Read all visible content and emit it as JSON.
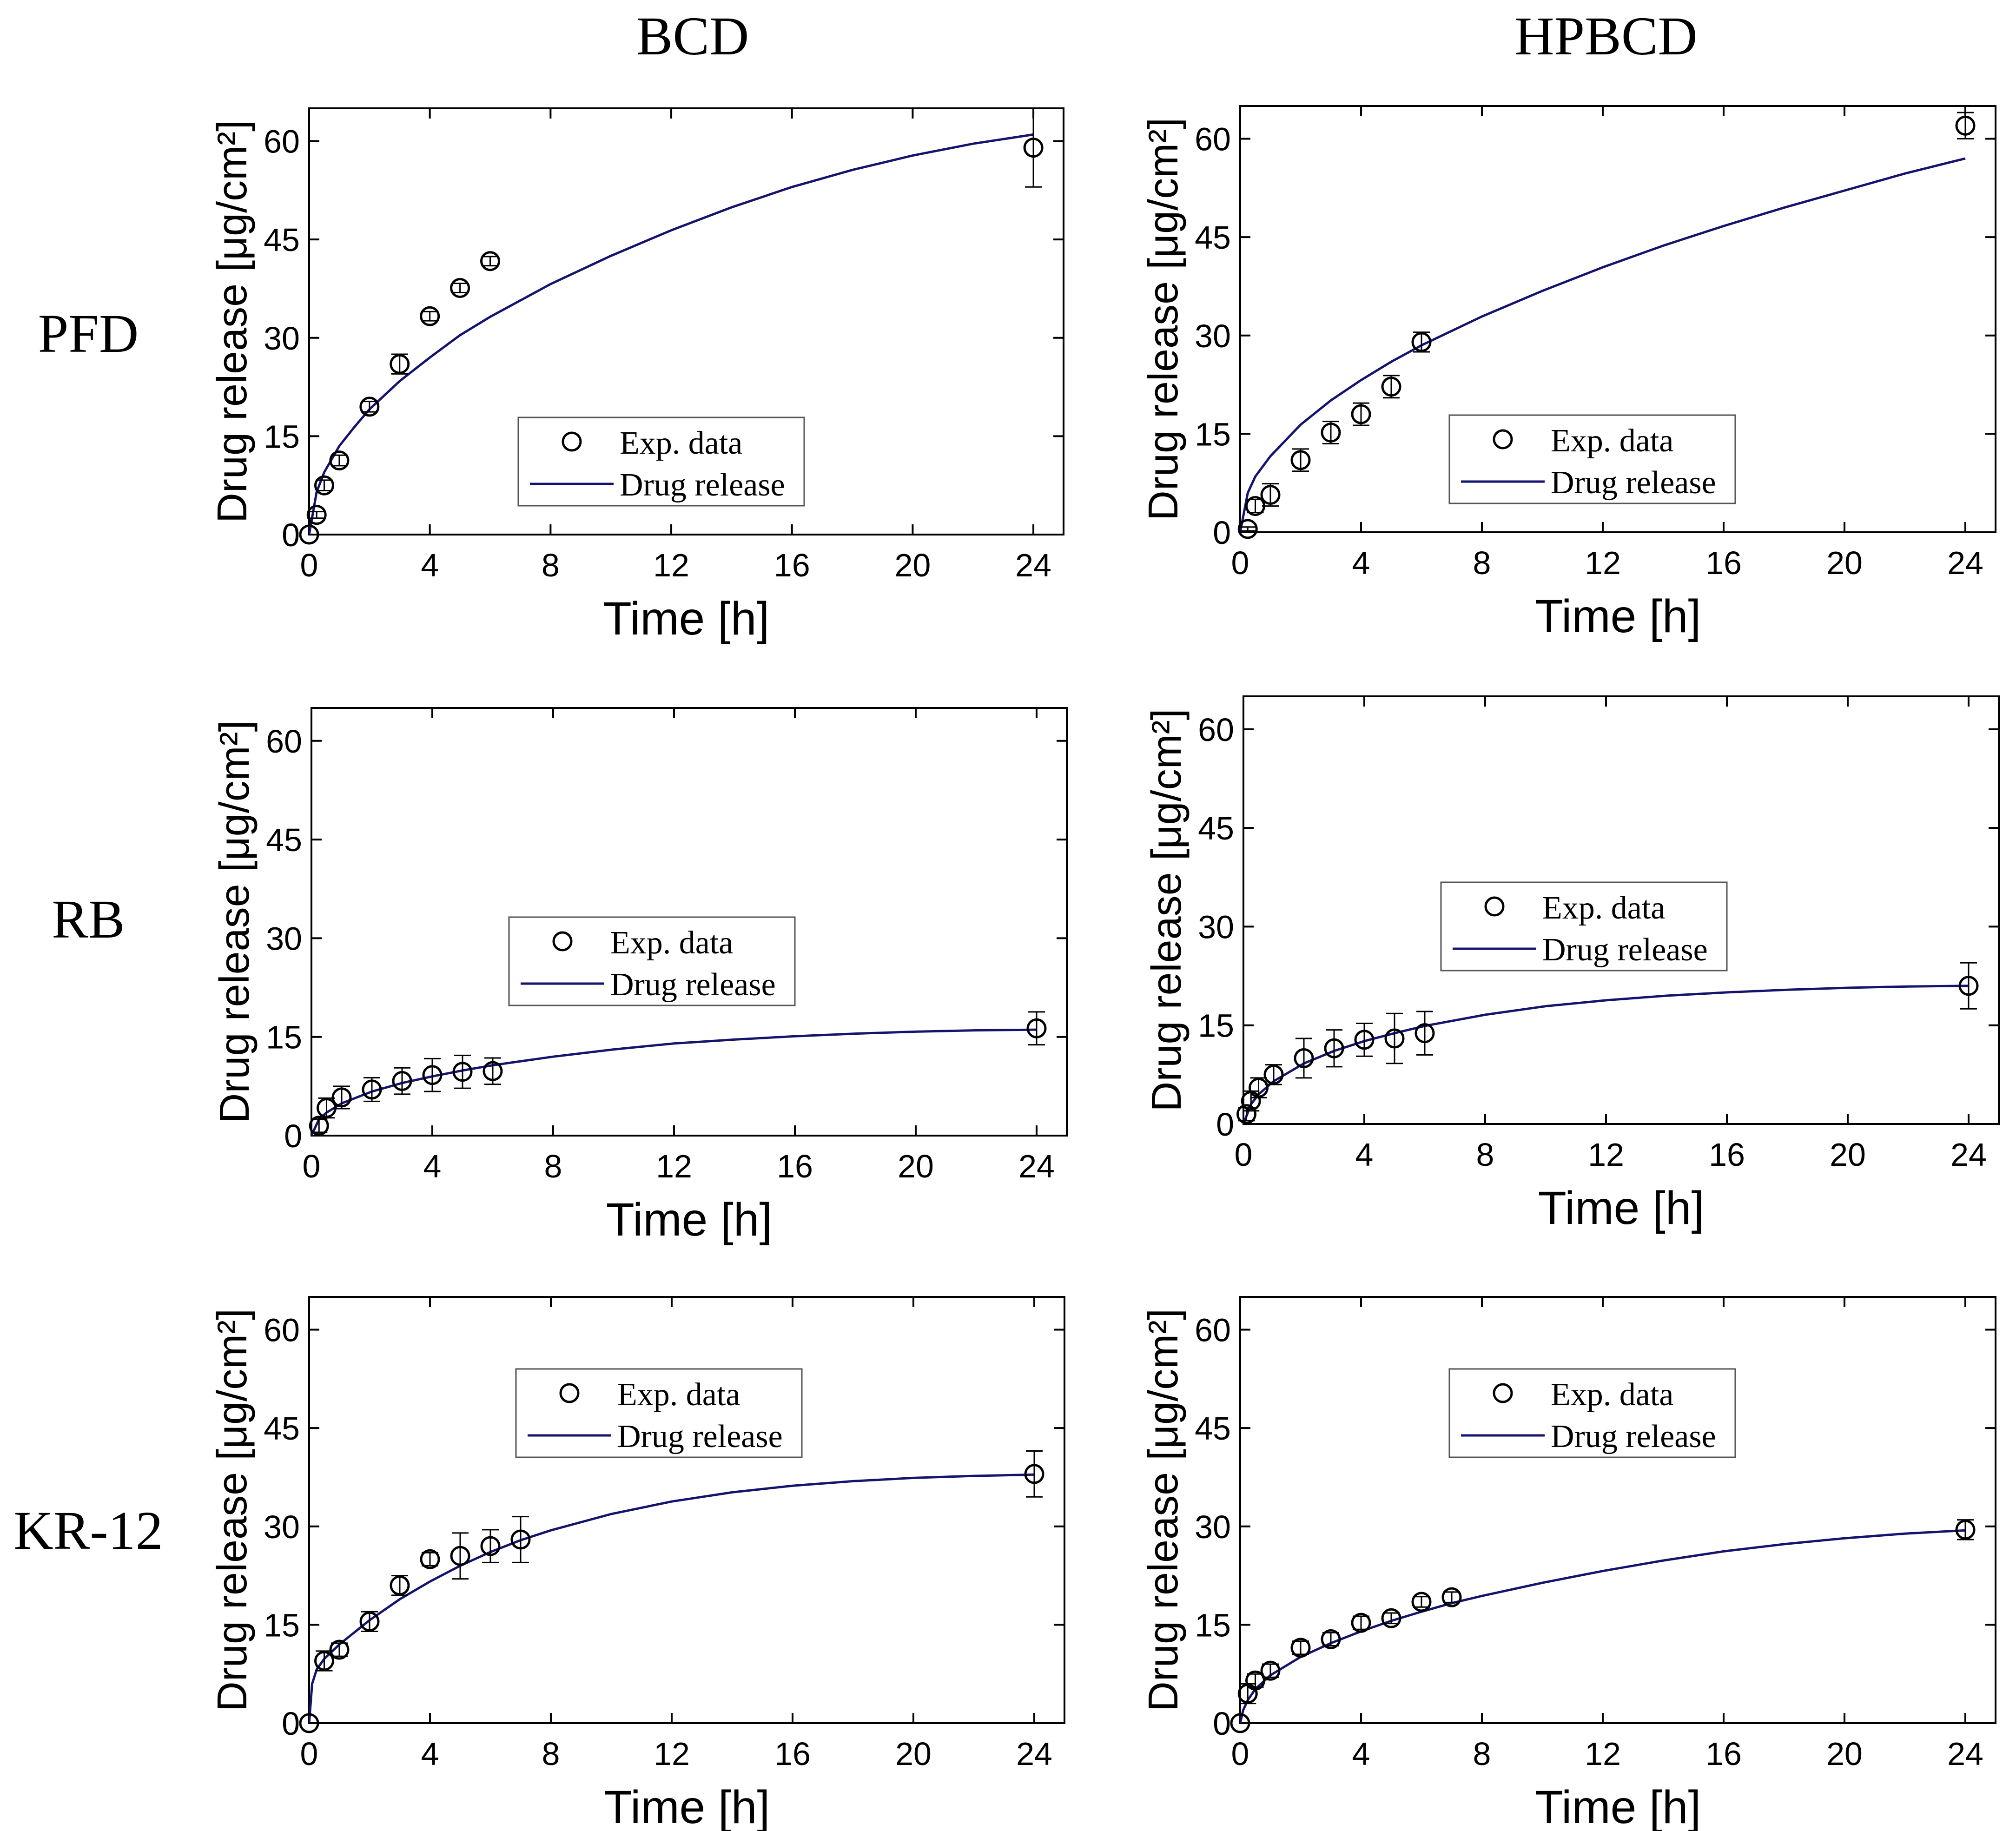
{
  "columns": [
    "BCD",
    "HPBCD"
  ],
  "rows": [
    "PFD",
    "RB",
    "KR-12"
  ],
  "style": {
    "curve_color": "#14146e",
    "marker_color": "#000000",
    "axis_color": "#000000"
  },
  "chart_data": [
    {
      "id": "pfd-bcd",
      "row": "PFD",
      "column": "BCD",
      "type": "scatter",
      "xlabel": "Time [h]",
      "ylabel": "Drug release [μg/cm²]",
      "xlim": [
        0,
        25
      ],
      "ylim": [
        0,
        65
      ],
      "xticks": [
        0,
        4,
        8,
        12,
        16,
        20,
        24
      ],
      "yticks": [
        0,
        15,
        30,
        45,
        60
      ],
      "legend": {
        "position": "center-right",
        "marker_label": "Exp. data",
        "line_label": "Drug release"
      },
      "series": [
        {
          "name": "Exp. data",
          "kind": "points",
          "x": [
            0,
            0.25,
            0.5,
            1,
            2,
            3,
            4,
            5,
            6,
            24
          ],
          "y": [
            0,
            3,
            7.5,
            11.3,
            19.5,
            26,
            33.3,
            37.6,
            41.7,
            59
          ],
          "err": [
            0,
            0.5,
            0.8,
            0.8,
            0.8,
            1.5,
            0.7,
            0.7,
            0.7,
            6
          ]
        },
        {
          "name": "Drug release",
          "kind": "line",
          "x": [
            0,
            0.25,
            0.5,
            1,
            1.5,
            2,
            3,
            4,
            5,
            6,
            8,
            10,
            12,
            14,
            16,
            18,
            20,
            22,
            24
          ],
          "y": [
            0,
            6.5,
            9.5,
            13.5,
            16.4,
            19.1,
            23.4,
            27,
            30.4,
            33.2,
            38.2,
            42.5,
            46.4,
            49.9,
            53.0,
            55.6,
            57.8,
            59.6,
            61
          ]
        }
      ]
    },
    {
      "id": "pfd-hpbcd",
      "row": "PFD",
      "column": "HPBCD",
      "type": "scatter",
      "xlabel": "Time [h]",
      "ylabel": "Drug release [μg/cm²]",
      "xlim": [
        0,
        25
      ],
      "ylim": [
        0,
        65
      ],
      "xticks": [
        0,
        4,
        8,
        12,
        16,
        20,
        24
      ],
      "yticks": [
        0,
        15,
        30,
        45,
        60
      ],
      "legend": {
        "position": "center-right",
        "marker_label": "Exp. data",
        "line_label": "Drug release"
      },
      "series": [
        {
          "name": "Exp. data",
          "kind": "points",
          "x": [
            0.25,
            0.5,
            1,
            2,
            3,
            4,
            5,
            6,
            24
          ],
          "y": [
            0.5,
            4,
            5.7,
            11,
            15.2,
            18,
            22.2,
            29,
            62
          ],
          "err": [
            0.3,
            1.0,
            1.7,
            1.7,
            1.7,
            1.7,
            1.7,
            1.5,
            2
          ]
        },
        {
          "name": "Drug release",
          "kind": "line",
          "x": [
            0,
            0.25,
            0.5,
            1,
            2,
            3,
            4,
            5,
            6,
            8,
            10,
            12,
            14,
            16,
            18,
            20,
            22,
            24
          ],
          "y": [
            0,
            6,
            8.5,
            11.6,
            16.4,
            20.1,
            23.2,
            26.0,
            28.5,
            32.9,
            36.8,
            40.4,
            43.7,
            46.7,
            49.5,
            52.1,
            54.7,
            57
          ]
        }
      ]
    },
    {
      "id": "rb-bcd",
      "row": "RB",
      "column": "BCD",
      "type": "scatter",
      "xlabel": "Time [h]",
      "ylabel": "Drug release [μg/cm²]",
      "xlim": [
        0,
        25
      ],
      "ylim": [
        0,
        65
      ],
      "xticks": [
        0,
        4,
        8,
        12,
        16,
        20,
        24
      ],
      "yticks": [
        0,
        15,
        30,
        45,
        60
      ],
      "legend": {
        "position": "center",
        "marker_label": "Exp. data",
        "line_label": "Drug release"
      },
      "series": [
        {
          "name": "Exp. data",
          "kind": "points",
          "x": [
            0.25,
            0.5,
            1,
            2,
            3,
            4,
            5,
            6,
            24
          ],
          "y": [
            1.5,
            4.2,
            5.8,
            7.0,
            8.3,
            9.2,
            9.7,
            9.8,
            16.3
          ],
          "err": [
            1,
            1.5,
            1.7,
            1.8,
            2.0,
            2.5,
            2.5,
            2.0,
            2.5
          ]
        },
        {
          "name": "Drug release",
          "kind": "line",
          "x": [
            0,
            0.25,
            0.5,
            1,
            2,
            3,
            4,
            5,
            6,
            8,
            10,
            12,
            14,
            16,
            18,
            20,
            22,
            24
          ],
          "y": [
            0,
            2.5,
            3.5,
            4.9,
            6.7,
            8.0,
            9.0,
            9.9,
            10.7,
            12.0,
            13.1,
            14.0,
            14.6,
            15.1,
            15.5,
            15.8,
            16.0,
            16.1
          ]
        }
      ]
    },
    {
      "id": "rb-hpbcd",
      "row": "RB",
      "column": "HPBCD",
      "type": "scatter",
      "xlabel": "Time [h]",
      "ylabel": "Drug release [μg/cm²]",
      "xlim": [
        0,
        25
      ],
      "ylim": [
        0,
        65
      ],
      "xticks": [
        0,
        4,
        8,
        12,
        16,
        20,
        24
      ],
      "yticks": [
        0,
        15,
        30,
        45,
        60
      ],
      "legend": {
        "position": "top-center",
        "marker_label": "Exp. data",
        "line_label": "Drug release"
      },
      "series": [
        {
          "name": "Exp. data",
          "kind": "points",
          "x": [
            0.1,
            0.25,
            0.5,
            1,
            2,
            3,
            4,
            5,
            6,
            24
          ],
          "y": [
            1.5,
            3.5,
            5.5,
            7.5,
            10,
            11.5,
            12.8,
            13.0,
            13.8,
            21
          ],
          "err": [
            1,
            1.5,
            1.5,
            1.5,
            3.0,
            2.8,
            2.5,
            3.8,
            3.3,
            3.5
          ]
        },
        {
          "name": "Drug release",
          "kind": "line",
          "x": [
            0,
            0.25,
            0.5,
            1,
            2,
            3,
            4,
            5,
            6,
            8,
            10,
            12,
            14,
            16,
            18,
            20,
            22,
            24
          ],
          "y": [
            0,
            3.0,
            4.5,
            6.5,
            9.2,
            11.1,
            12.6,
            13.8,
            14.9,
            16.6,
            17.9,
            18.8,
            19.5,
            20.0,
            20.4,
            20.7,
            20.9,
            21.0
          ]
        }
      ]
    },
    {
      "id": "kr12-bcd",
      "row": "KR-12",
      "column": "BCD",
      "type": "scatter",
      "xlabel": "Time [h]",
      "ylabel": "Drug release [μg/cm²]",
      "xlim": [
        0,
        25
      ],
      "ylim": [
        0,
        65
      ],
      "xticks": [
        0,
        4,
        8,
        12,
        16,
        20,
        24
      ],
      "yticks": [
        0,
        15,
        30,
        45,
        60
      ],
      "legend": {
        "position": "top-center",
        "marker_label": "Exp. data",
        "line_label": "Drug release"
      },
      "series": [
        {
          "name": "Exp. data",
          "kind": "points",
          "x": [
            0,
            0.5,
            1,
            2,
            3,
            4,
            5,
            6,
            7,
            24
          ],
          "y": [
            0,
            9.5,
            11.2,
            15.5,
            21,
            25,
            25.5,
            27,
            28,
            38
          ],
          "err": [
            0,
            1.5,
            1.0,
            1.5,
            1.5,
            1.0,
            3.5,
            2.5,
            3.5,
            3.5
          ]
        },
        {
          "name": "Drug release",
          "kind": "line",
          "x": [
            0,
            0.1,
            0.25,
            0.5,
            1,
            2,
            3,
            4,
            5,
            6,
            7,
            8,
            10,
            12,
            14,
            16,
            18,
            20,
            22,
            24
          ],
          "y": [
            0,
            6.0,
            8.2,
            9.8,
            12.0,
            15.7,
            18.9,
            21.6,
            24.0,
            26.1,
            27.9,
            29.4,
            31.9,
            33.8,
            35.2,
            36.2,
            36.9,
            37.4,
            37.7,
            37.9
          ]
        }
      ]
    },
    {
      "id": "kr12-hpbcd",
      "row": "KR-12",
      "column": "HPBCD",
      "type": "scatter",
      "xlabel": "Time [h]",
      "ylabel": "Drug release [μg/cm²]",
      "xlim": [
        0,
        25
      ],
      "ylim": [
        0,
        65
      ],
      "xticks": [
        0,
        4,
        8,
        12,
        16,
        20,
        24
      ],
      "yticks": [
        0,
        15,
        30,
        45,
        60
      ],
      "legend": {
        "position": "top-center",
        "marker_label": "Exp. data",
        "line_label": "Drug release"
      },
      "series": [
        {
          "name": "Exp. data",
          "kind": "points",
          "x": [
            0,
            0.25,
            0.5,
            1,
            2,
            3,
            4,
            5,
            6,
            7,
            24
          ],
          "y": [
            0,
            4.5,
            6.5,
            8,
            11.5,
            12.8,
            15.3,
            16,
            18.5,
            19.2,
            29.5
          ],
          "err": [
            0,
            1.5,
            1.0,
            1.0,
            1.0,
            1.0,
            1.0,
            0.8,
            0.8,
            0.8,
            1.5
          ]
        },
        {
          "name": "Drug release",
          "kind": "line",
          "x": [
            0,
            0.1,
            0.25,
            0.5,
            1,
            2,
            3,
            4,
            5,
            6,
            7,
            8,
            10,
            12,
            14,
            16,
            18,
            20,
            22,
            24
          ],
          "y": [
            0,
            2.0,
            3.5,
            5.2,
            7.3,
            10.1,
            12.2,
            14.0,
            15.6,
            17.0,
            18.3,
            19.4,
            21.4,
            23.2,
            24.8,
            26.2,
            27.3,
            28.2,
            28.9,
            29.4
          ]
        }
      ]
    }
  ]
}
